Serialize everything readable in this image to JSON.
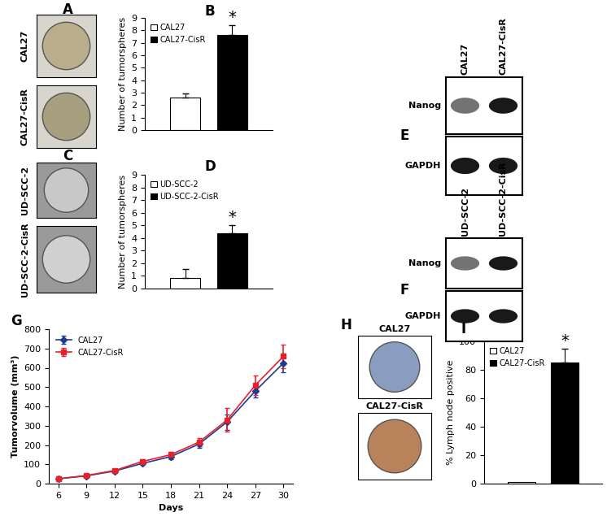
{
  "chart_data": [
    {
      "panel": "B",
      "type": "bar",
      "ylabel": "Number of tumorspheres",
      "categories": [
        null
      ],
      "ylim": [
        0,
        9
      ],
      "yticks": [
        0,
        1,
        2,
        3,
        4,
        5,
        6,
        7,
        8,
        9
      ],
      "legend": "upper left",
      "series": [
        {
          "name": "CAL27",
          "color": "#ffffff",
          "values": [
            2.6
          ],
          "errors": [
            0.35
          ]
        },
        {
          "name": "CAL27-CisR",
          "color": "#000000",
          "values": [
            7.6
          ],
          "errors": [
            0.8
          ],
          "annotation": "*"
        }
      ]
    },
    {
      "panel": "D",
      "type": "bar",
      "ylabel": "Number of tumorspheres",
      "categories": [
        null
      ],
      "ylim": [
        0,
        9
      ],
      "yticks": [
        0,
        1,
        2,
        3,
        4,
        5,
        6,
        7,
        8,
        9
      ],
      "legend": "upper left",
      "series": [
        {
          "name": "UD-SCC-2",
          "color": "#ffffff",
          "values": [
            0.85
          ],
          "errors": [
            0.7
          ]
        },
        {
          "name": "UD-SCC-2-CisR",
          "color": "#000000",
          "values": [
            4.35
          ],
          "errors": [
            0.65
          ],
          "annotation": "*"
        }
      ]
    },
    {
      "panel": "G",
      "type": "line",
      "xlabel": "Days",
      "ylabel": "Tumorvolume (mm³)",
      "x": [
        6,
        9,
        12,
        15,
        18,
        21,
        24,
        27,
        30
      ],
      "xlim": [
        5,
        31
      ],
      "xticks": [
        6,
        9,
        12,
        15,
        18,
        21,
        24,
        27,
        30
      ],
      "ylim": [
        0,
        800
      ],
      "yticks": [
        0,
        100,
        200,
        300,
        400,
        500,
        600,
        700,
        800
      ],
      "legend": "upper left",
      "series": [
        {
          "name": "CAL27",
          "color": "#1f3a93",
          "marker": "diamond",
          "line_style": "solid",
          "values": [
            25,
            40,
            65,
            105,
            140,
            205,
            320,
            480,
            625
          ],
          "errors": [
            3,
            4,
            5,
            8,
            12,
            18,
            40,
            35,
            50
          ]
        },
        {
          "name": "CAL27-CisR",
          "color": "#e8202a",
          "marker": "square",
          "line_style": "solid",
          "values": [
            25,
            42,
            68,
            115,
            150,
            215,
            330,
            510,
            660
          ],
          "errors": [
            3,
            4,
            6,
            10,
            15,
            20,
            60,
            50,
            60
          ]
        }
      ]
    },
    {
      "panel": "I",
      "type": "bar",
      "ylabel": "% Lymph node positive",
      "categories": [
        null
      ],
      "ylim": [
        0,
        100
      ],
      "yticks": [
        0,
        20,
        40,
        60,
        80,
        100
      ],
      "legend": "upper left",
      "series": [
        {
          "name": "CAL27",
          "color": "#ffffff",
          "values": [
            1
          ]
        },
        {
          "name": "CAL27-CisR",
          "color": "#000000",
          "values": [
            85
          ],
          "errors": [
            10
          ],
          "annotation": "*"
        }
      ]
    }
  ],
  "image_panels": [
    {
      "panel": "A",
      "type": "micrograph",
      "labels": [
        "CAL27",
        "CAL27-CisR"
      ]
    },
    {
      "panel": "C",
      "type": "micrograph",
      "labels": [
        "UD-SCC-2",
        "UD-SCC-2-CisR"
      ]
    },
    {
      "panel": "E",
      "type": "western_blot",
      "lanes": [
        "CAL27",
        "CAL27-CisR"
      ],
      "rows": [
        "Nanog",
        "GAPDH"
      ]
    },
    {
      "panel": "F",
      "type": "western_blot",
      "lanes": [
        "UD-SCC-2",
        "UD-SCC-2-CisR"
      ],
      "rows": [
        "Nanog",
        "GAPDH"
      ]
    },
    {
      "panel": "H",
      "type": "micrograph",
      "labels": [
        "CAL27",
        "CAL27-CisR"
      ]
    }
  ]
}
